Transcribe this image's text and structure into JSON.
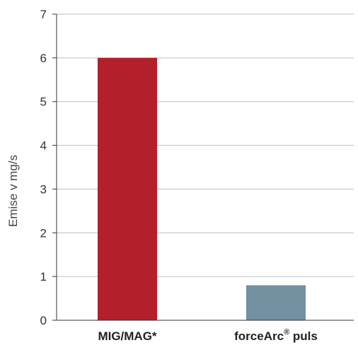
{
  "chart_data": {
    "type": "bar",
    "title": "",
    "xlabel": "",
    "ylabel": "Emise v mg/s",
    "ylim": [
      0,
      7
    ],
    "yticks": [
      0,
      1,
      2,
      3,
      4,
      5,
      6,
      7
    ],
    "grid": true,
    "categories": [
      {
        "label": "MIG/MAG*",
        "sup": ""
      },
      {
        "label": "forceArc",
        "sup": "®",
        "suffix": " puls"
      }
    ],
    "values": [
      6.0,
      0.8
    ],
    "colors": [
      "#b31f2b",
      "#7290a0"
    ]
  }
}
